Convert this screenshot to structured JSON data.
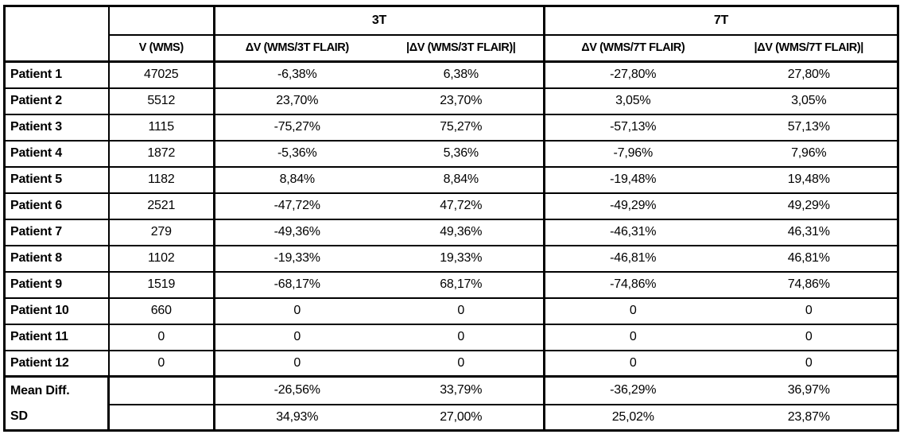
{
  "colors": {
    "background": "#ffffff",
    "text": "#000000",
    "border": "#000000"
  },
  "table": {
    "group_headers": {
      "corner": "",
      "v_top": "",
      "t3": "3T",
      "t7": "7T"
    },
    "column_headers": {
      "patient": "",
      "v": "V (WMS)",
      "dv3t": "ΔV (WMS/3T FLAIR)",
      "adv3t": "|ΔV (WMS/3T FLAIR)|",
      "dv7t": "ΔV (WMS/7T FLAIR)",
      "adv7t": "|ΔV (WMS/7T FLAIR)|"
    },
    "rows": [
      {
        "label": "Patient 1",
        "v": "47025",
        "dv3t": "-6,38%",
        "adv3t": "6,38%",
        "dv7t": "-27,80%",
        "adv7t": "27,80%"
      },
      {
        "label": "Patient 2",
        "v": "5512",
        "dv3t": "23,70%",
        "adv3t": "23,70%",
        "dv7t": "3,05%",
        "adv7t": "3,05%"
      },
      {
        "label": "Patient 3",
        "v": "1115",
        "dv3t": "-75,27%",
        "adv3t": "75,27%",
        "dv7t": "-57,13%",
        "adv7t": "57,13%"
      },
      {
        "label": "Patient 4",
        "v": "1872",
        "dv3t": "-5,36%",
        "adv3t": "5,36%",
        "dv7t": "-7,96%",
        "adv7t": "7,96%"
      },
      {
        "label": "Patient 5",
        "v": "1182",
        "dv3t": "8,84%",
        "adv3t": "8,84%",
        "dv7t": "-19,48%",
        "adv7t": "19,48%"
      },
      {
        "label": "Patient 6",
        "v": "2521",
        "dv3t": "-47,72%",
        "adv3t": "47,72%",
        "dv7t": "-49,29%",
        "adv7t": "49,29%"
      },
      {
        "label": "Patient 7",
        "v": "279",
        "dv3t": "-49,36%",
        "adv3t": "49,36%",
        "dv7t": "-46,31%",
        "adv7t": "46,31%"
      },
      {
        "label": "Patient 8",
        "v": "1102",
        "dv3t": "-19,33%",
        "adv3t": "19,33%",
        "dv7t": "-46,81%",
        "adv7t": "46,81%"
      },
      {
        "label": "Patient 9",
        "v": "1519",
        "dv3t": "-68,17%",
        "adv3t": "68,17%",
        "dv7t": "-74,86%",
        "adv7t": "74,86%"
      },
      {
        "label": "Patient 10",
        "v": "660",
        "dv3t": "0",
        "adv3t": "0",
        "dv7t": "0",
        "adv7t": "0"
      },
      {
        "label": "Patient 11",
        "v": "0",
        "dv3t": "0",
        "adv3t": "0",
        "dv7t": "0",
        "adv7t": "0"
      },
      {
        "label": "Patient 12",
        "v": "0",
        "dv3t": "0",
        "adv3t": "0",
        "dv7t": "0",
        "adv7t": "0"
      }
    ],
    "summary_rows": [
      {
        "label": "Mean Diff.",
        "v": "",
        "dv3t": "-26,56%",
        "adv3t": "33,79%",
        "dv7t": "-36,29%",
        "adv7t": "36,97%"
      },
      {
        "label": "SD",
        "v": "",
        "dv3t": "34,93%",
        "adv3t": "27,00%",
        "dv7t": "25,02%",
        "adv7t": "23,87%"
      }
    ]
  }
}
